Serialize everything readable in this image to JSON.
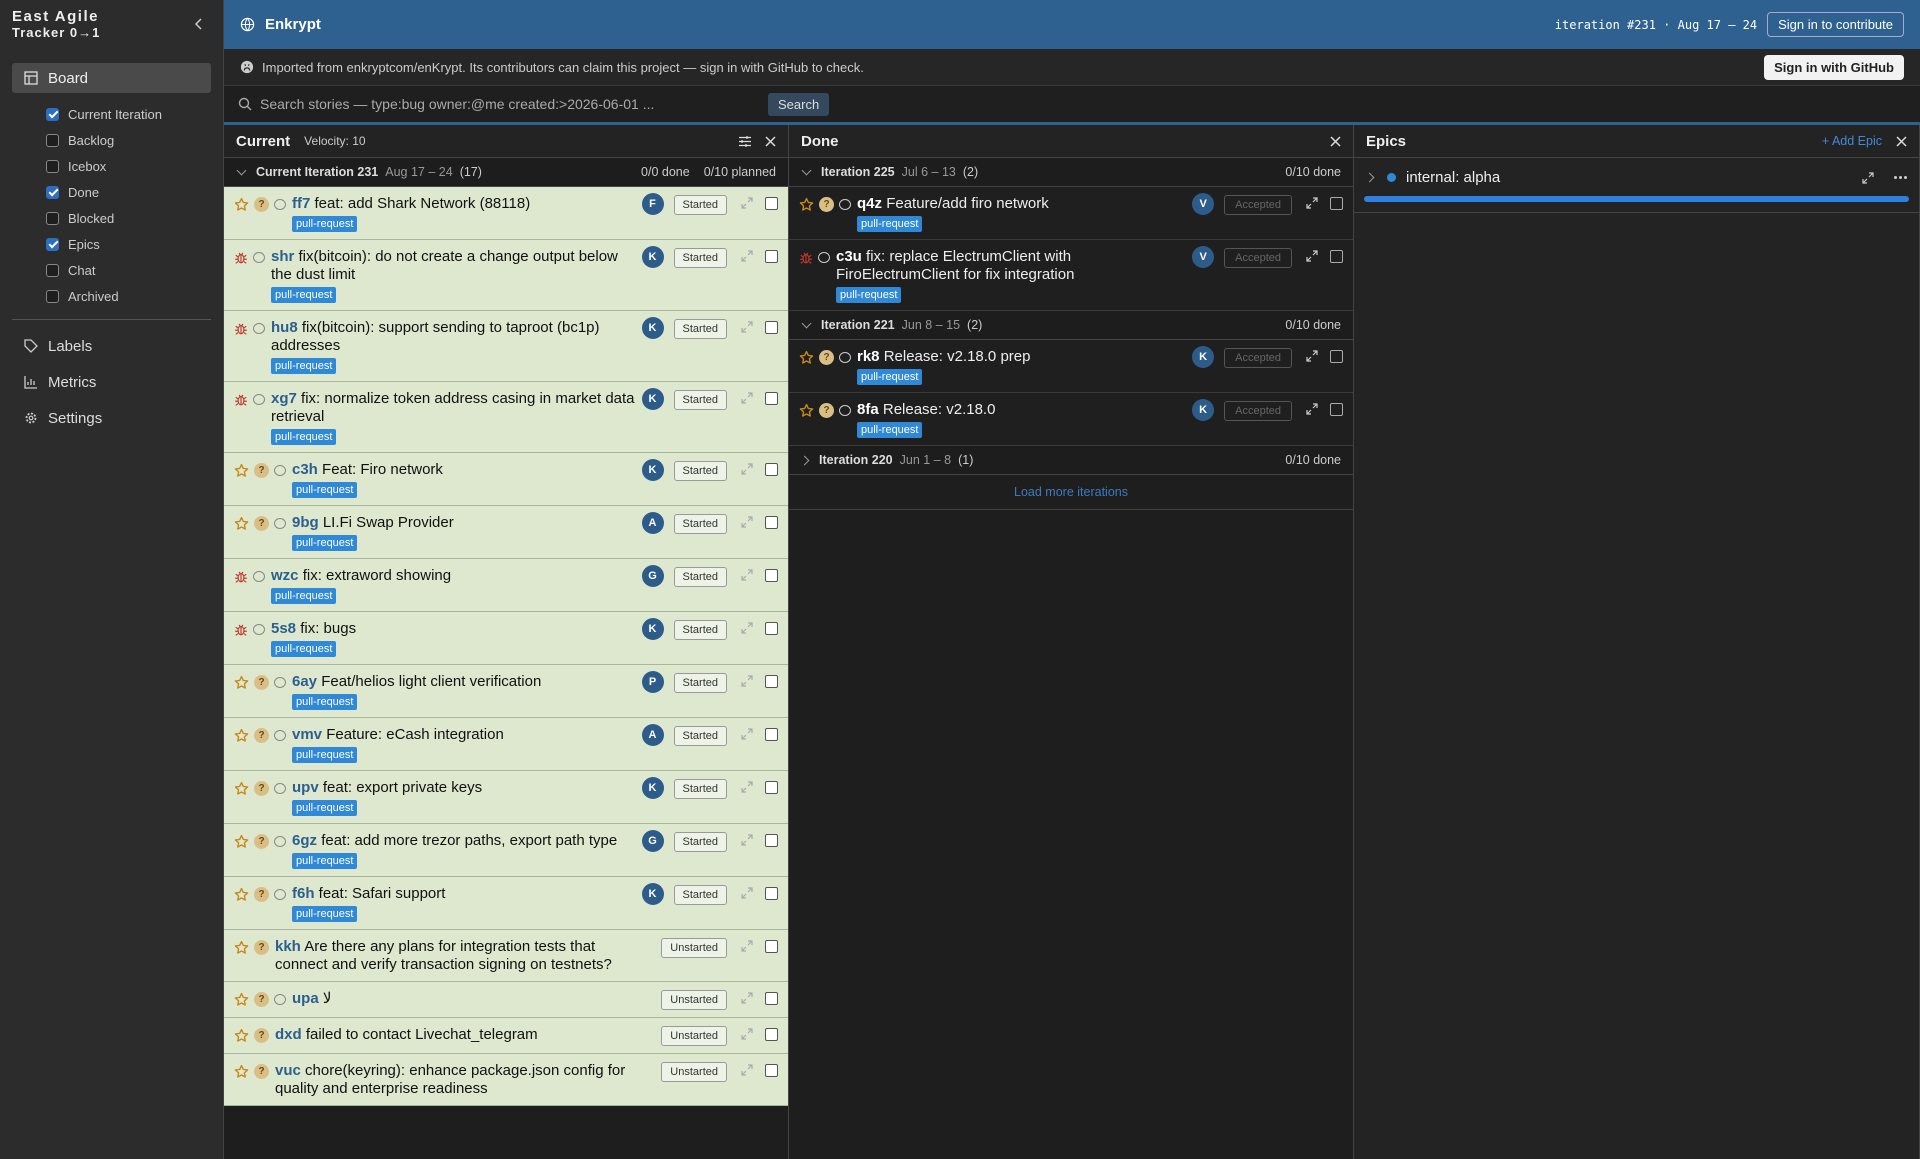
{
  "sidebar": {
    "brand": "East Agile",
    "product": "Tracker 0→1",
    "board": "Board",
    "panels": [
      {
        "label": "Current Iteration",
        "checked": true
      },
      {
        "label": "Backlog",
        "checked": false
      },
      {
        "label": "Icebox",
        "checked": false
      },
      {
        "label": "Done",
        "checked": true
      },
      {
        "label": "Blocked",
        "checked": false
      },
      {
        "label": "Epics",
        "checked": true
      },
      {
        "label": "Chat",
        "checked": false
      },
      {
        "label": "Archived",
        "checked": false
      }
    ],
    "links": [
      "Labels",
      "Metrics",
      "Settings"
    ]
  },
  "topbar": {
    "project": "Enkrypt",
    "iteration": "iteration #231 · Aug 17 – 24",
    "signin": "Sign in to contribute"
  },
  "notice": {
    "text": "Imported from enkryptcom/enKrypt. Its contributors can claim this project — sign in with GitHub to check.",
    "button": "Sign in with GitHub"
  },
  "search": {
    "placeholder": "Search stories — type:bug owner:@me created:>2026-06-01 ...",
    "button": "Search"
  },
  "current": {
    "title": "Current",
    "velocity": "Velocity: 10",
    "iteration": {
      "name": "Current Iteration 231",
      "dates": "Aug 17 – 24",
      "count": "(17)",
      "done": "0/0 done",
      "planned": "0/10 planned"
    },
    "stories": [
      {
        "type": "feature",
        "estimate": "?",
        "comment": true,
        "id": "ff7",
        "title": "feat: add Shark Network (88118)",
        "label": "pull-request",
        "owner": "F",
        "state": "Started"
      },
      {
        "type": "bug",
        "comment": true,
        "id": "shr",
        "title": "fix(bitcoin): do not create a change output below the dust limit",
        "label": "pull-request",
        "owner": "K",
        "state": "Started"
      },
      {
        "type": "bug",
        "comment": true,
        "id": "hu8",
        "title": "fix(bitcoin): support sending to taproot (bc1p) addresses",
        "label": "pull-request",
        "owner": "K",
        "state": "Started"
      },
      {
        "type": "bug",
        "comment": true,
        "id": "xg7",
        "title": "fix: normalize token address casing in market data retrieval",
        "label": "pull-request",
        "owner": "K",
        "state": "Started"
      },
      {
        "type": "feature",
        "estimate": "?",
        "comment": true,
        "id": "c3h",
        "title": "Feat: Firo network",
        "label": "pull-request",
        "owner": "K",
        "state": "Started"
      },
      {
        "type": "feature",
        "estimate": "?",
        "comment": true,
        "id": "9bg",
        "title": "LI.Fi Swap Provider",
        "label": "pull-request",
        "owner": "A",
        "state": "Started"
      },
      {
        "type": "bug",
        "comment": true,
        "id": "wzc",
        "title": "fix: extraword showing",
        "label": "pull-request",
        "owner": "G",
        "state": "Started"
      },
      {
        "type": "bug",
        "comment": true,
        "id": "5s8",
        "title": "fix: bugs",
        "label": "pull-request",
        "owner": "K",
        "state": "Started"
      },
      {
        "type": "feature",
        "estimate": "?",
        "comment": true,
        "id": "6ay",
        "title": "Feat/helios light client verification",
        "label": "pull-request",
        "owner": "P",
        "state": "Started"
      },
      {
        "type": "feature",
        "estimate": "?",
        "comment": true,
        "id": "vmv",
        "title": "Feature: eCash integration",
        "label": "pull-request",
        "owner": "A",
        "state": "Started"
      },
      {
        "type": "feature",
        "estimate": "?",
        "comment": true,
        "id": "upv",
        "title": "feat: export private keys",
        "label": "pull-request",
        "owner": "K",
        "state": "Started"
      },
      {
        "type": "feature",
        "estimate": "?",
        "comment": true,
        "id": "6gz",
        "title": "feat: add more trezor paths, export path type",
        "label": "pull-request",
        "owner": "G",
        "state": "Started"
      },
      {
        "type": "feature",
        "estimate": "?",
        "comment": true,
        "id": "f6h",
        "title": "feat: Safari support",
        "label": "pull-request",
        "owner": "K",
        "state": "Started"
      },
      {
        "type": "feature",
        "estimate": "?",
        "comment": false,
        "id": "kkh",
        "title": "Are there any plans for integration tests that connect and verify transaction signing on testnets?",
        "state": "Unstarted"
      },
      {
        "type": "feature",
        "estimate": "?",
        "comment": true,
        "id": "upa",
        "title": "لا",
        "state": "Unstarted"
      },
      {
        "type": "feature",
        "estimate": "?",
        "comment": false,
        "id": "dxd",
        "title": "failed to contact Livechat_telegram",
        "state": "Unstarted"
      },
      {
        "type": "feature",
        "estimate": "?",
        "comment": false,
        "id": "vuc",
        "title": "chore(keyring): enhance package.json config for quality and enterprise readiness",
        "state": "Unstarted"
      }
    ]
  },
  "done": {
    "title": "Done",
    "iterations": [
      {
        "name": "Iteration 225",
        "dates": "Jul 6 – 13",
        "count": "(2)",
        "done": "0/10 done",
        "expanded": true,
        "stories": [
          {
            "type": "feature",
            "estimate": "?",
            "comment": true,
            "id": "q4z",
            "title": "Feature/add firo network",
            "label": "pull-request",
            "owner": "V",
            "state": "Accepted"
          },
          {
            "type": "bug",
            "comment": true,
            "id": "c3u",
            "title": "fix: replace ElectrumClient with FiroElectrumClient for fix integration",
            "label": "pull-request",
            "owner": "V",
            "state": "Accepted"
          }
        ]
      },
      {
        "name": "Iteration 221",
        "dates": "Jun 8 – 15",
        "count": "(2)",
        "done": "0/10 done",
        "expanded": true,
        "stories": [
          {
            "type": "feature",
            "estimate": "?",
            "comment": true,
            "id": "rk8",
            "title": "Release: v2.18.0 prep",
            "label": "pull-request",
            "owner": "K",
            "state": "Accepted"
          },
          {
            "type": "feature",
            "estimate": "?",
            "comment": true,
            "id": "8fa",
            "title": "Release: v2.18.0",
            "label": "pull-request",
            "owner": "K",
            "state": "Accepted"
          }
        ]
      },
      {
        "name": "Iteration 220",
        "dates": "Jun 1 – 8",
        "count": "(1)",
        "done": "0/10 done",
        "expanded": false,
        "stories": []
      }
    ],
    "load_more": "Load more iterations"
  },
  "epics": {
    "title": "Epics",
    "add": "+ Add Epic",
    "items": [
      {
        "name": "internal: alpha"
      }
    ]
  }
}
